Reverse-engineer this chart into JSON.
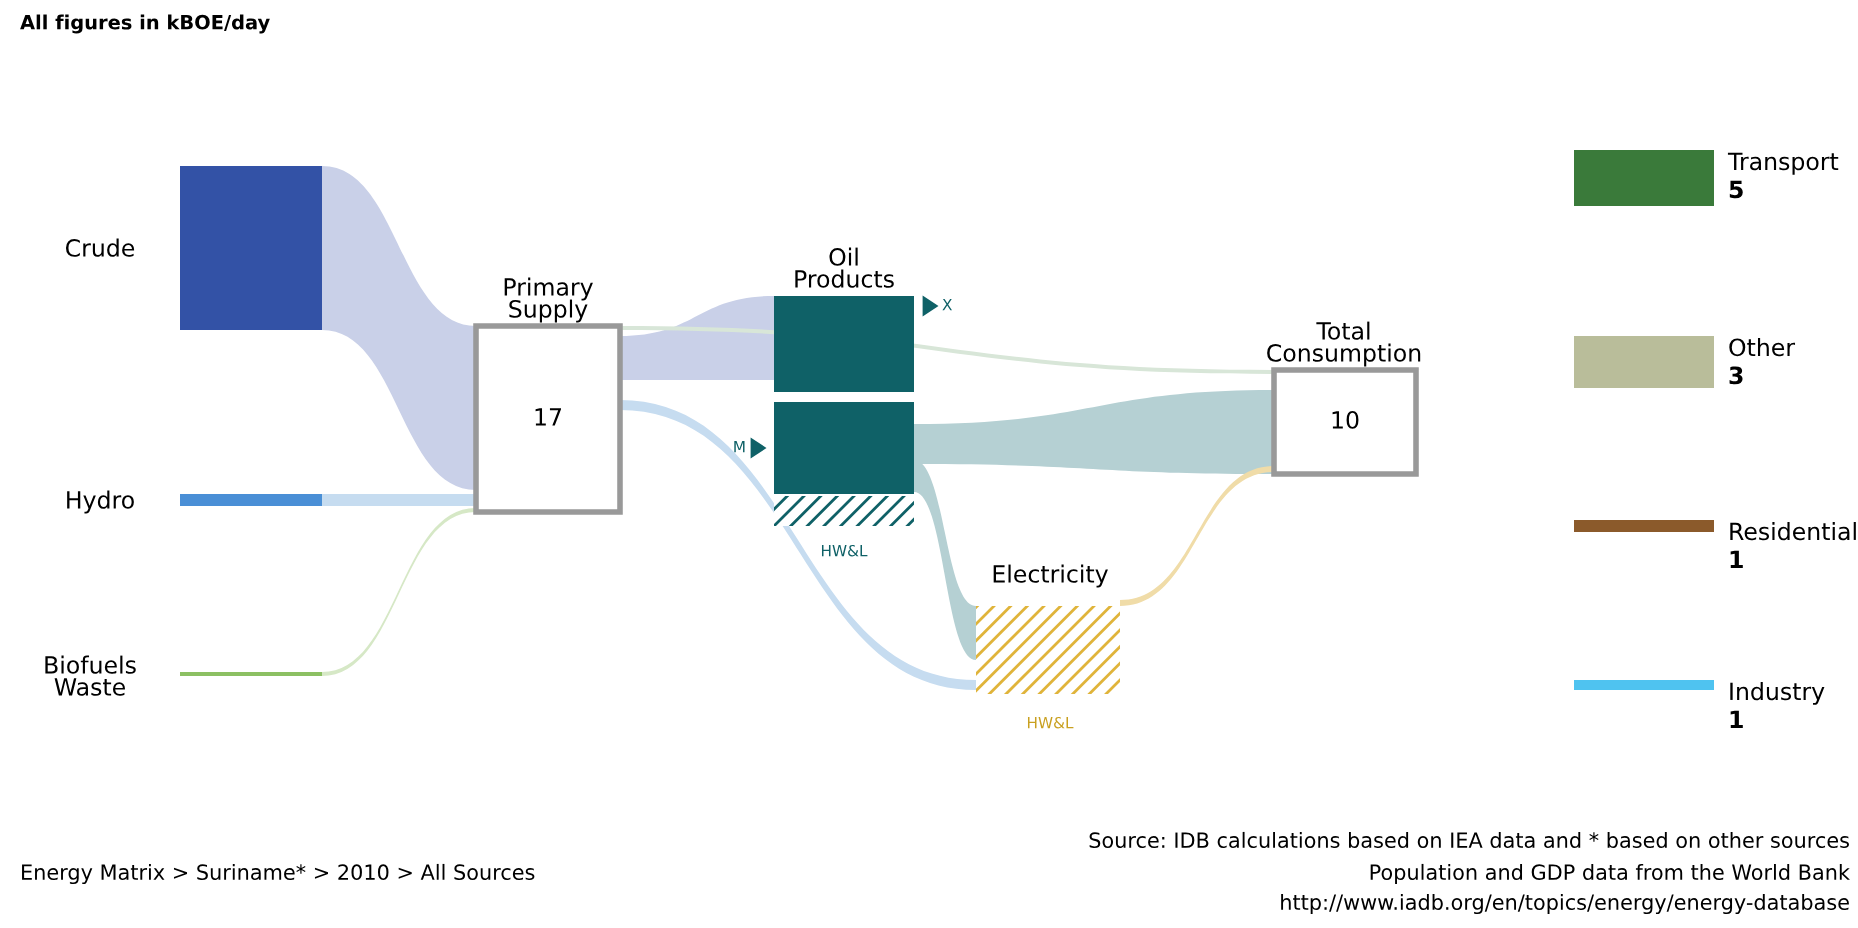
{
  "chart_data": {
    "type": "other",
    "title": "All figures in kBOE/day",
    "categories": [
      "Crude",
      "Hydro",
      "Biofuels\nWaste",
      "Primary\nSupply",
      "Oil\nProducts",
      "Electricity",
      "Total\nConsumption",
      "Transport",
      "Other",
      "Residential",
      "Industry"
    ],
    "values": [
      null,
      null,
      null,
      17,
      null,
      null,
      10,
      5,
      3,
      1,
      1
    ],
    "data_labels": true,
    "colors": [
      "#3352a6",
      "#4a8fd6",
      "#8cc063",
      "#ffffff",
      "#0f6167",
      "#e0b43a",
      "#ffffff",
      "#3a7a3a",
      "#b9bd9a",
      "#8b5a2b",
      "#4fc3f0"
    ],
    "annotations": [
      "X",
      "M",
      "HW&L",
      "HW&L",
      "Energy Matrix > Suriname* > 2010 > All Sources",
      "Source: IDB calculations based on IEA data and * based on other sources",
      "Population and GDP data from the World Bank",
      "http://www.iadb.org/en/topics/energy/energy-database"
    ]
  }
}
